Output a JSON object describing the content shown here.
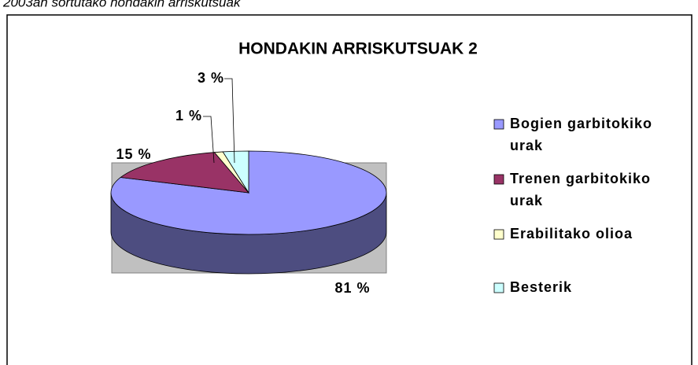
{
  "caption": "2003an sortutako hondakin arriskutsuak",
  "chart_data": {
    "type": "pie",
    "title": "HONDAKIN ARRISKUTSUAK 2",
    "categories": [
      "Bogien garbitokiko urak",
      "Trenen garbitokiko urak",
      "Erabilitako olioa",
      "Besterik"
    ],
    "values": [
      81,
      15,
      1,
      3
    ],
    "value_labels": [
      "81 %",
      "15 %",
      "1 %",
      "3 %"
    ],
    "colors": [
      "#9999ff",
      "#993366",
      "#ffffcc",
      "#ccffff"
    ],
    "legend": "right"
  }
}
